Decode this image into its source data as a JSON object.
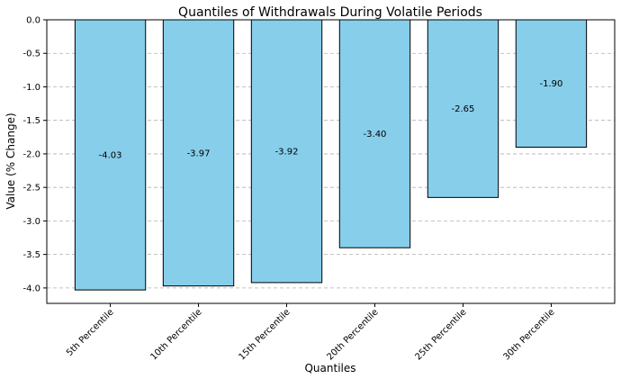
{
  "chart_data": {
    "type": "bar",
    "title": "Quantiles of Withdrawals During Volatile Periods",
    "xlabel": "Quantiles",
    "ylabel": "Value (% Change)",
    "categories": [
      "5th Percentile",
      "10th Percentile",
      "15th Percentile",
      "20th Percentile",
      "25th Percentile",
      "30th Percentile"
    ],
    "values": [
      -4.03,
      -3.97,
      -3.92,
      -3.4,
      -2.65,
      -1.9
    ],
    "data_labels": [
      "-4.03",
      "-3.97",
      "-3.92",
      "-3.40",
      "-2.65",
      "-1.90"
    ],
    "yticks": [
      0.0,
      -0.5,
      -1.0,
      -1.5,
      -2.0,
      -2.5,
      -3.0,
      -3.5,
      -4.0
    ],
    "ytick_labels": [
      "0.0",
      "-0.5",
      "-1.0",
      "-1.5",
      "-2.0",
      "-2.5",
      "-3.0",
      "-3.5",
      "-4.0"
    ],
    "ylim": [
      -4.23,
      0.0
    ],
    "grid": "y-dashed",
    "colors": {
      "bar_fill": "#87ceeb",
      "bar_edge": "#000000",
      "grid": "#b0b0b0"
    }
  }
}
